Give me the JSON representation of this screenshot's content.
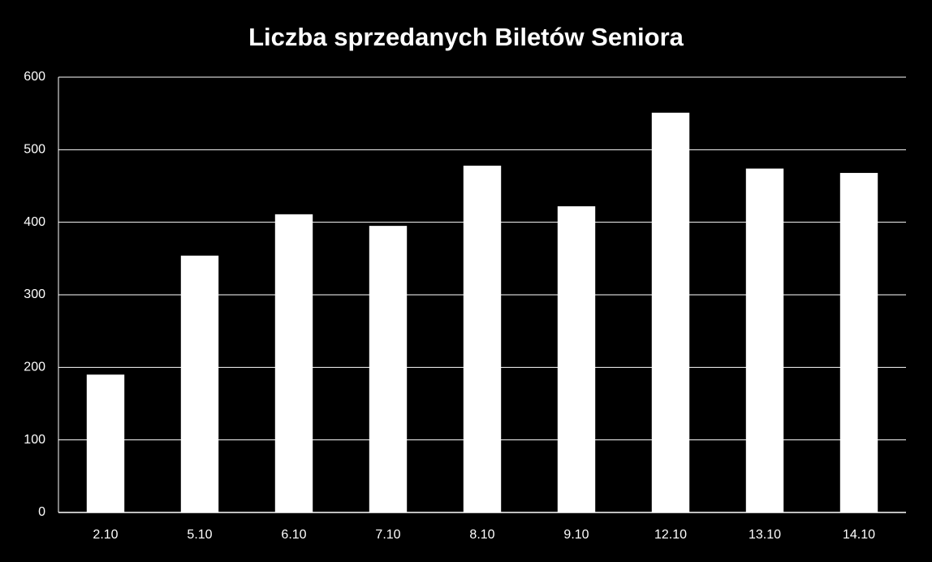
{
  "chart_data": {
    "type": "bar",
    "title": "Liczba sprzedanych Biletów Seniora",
    "categories": [
      "2.10",
      "5.10",
      "6.10",
      "7.10",
      "8.10",
      "9.10",
      "12.10",
      "13.10",
      "14.10"
    ],
    "values": [
      190,
      354,
      411,
      395,
      478,
      422,
      551,
      474,
      468
    ],
    "color": "#ffffff",
    "ylim": [
      0,
      600
    ],
    "yticks": [
      0,
      100,
      200,
      300,
      400,
      500,
      600
    ],
    "grid": true
  }
}
